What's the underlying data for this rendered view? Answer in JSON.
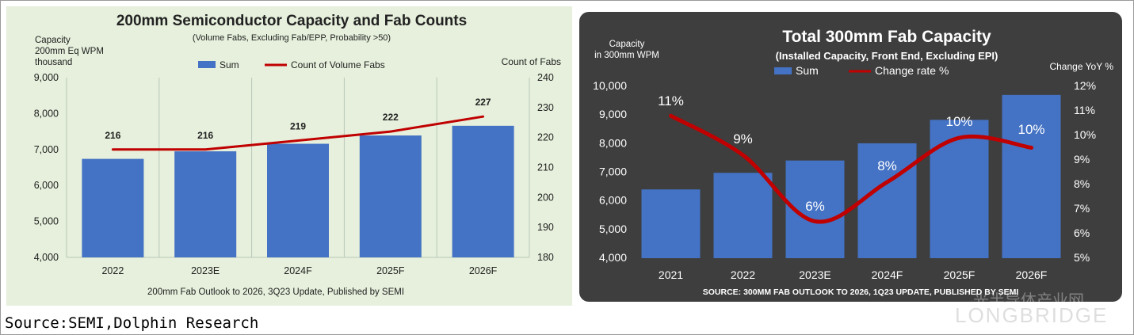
{
  "source_caption": "Source:SEMI,Dolphin Research",
  "watermark": {
    "cn": "光半导体产业网",
    "brand": "LONGBRIDGE"
  },
  "colors": {
    "bar_blue": "#4472c4",
    "line_red": "#c00000",
    "left_bg": "#e6f0dc",
    "right_bg": "#3e3e3e"
  },
  "chart_data": [
    {
      "type": "bar",
      "title": "200mm Semiconductor Capacity and Fab Counts",
      "subtitle": "(Volume Fabs, Excluding Fab/EPP, Probability >50)",
      "ylabel": [
        "Capacity",
        "200mm Eq WPM",
        "thousand"
      ],
      "y2label": "Count of Fabs",
      "categories": [
        "2022",
        "2023E",
        "2024F",
        "2025F",
        "2026F"
      ],
      "series": [
        {
          "name": "Sum",
          "kind": "bar",
          "axis": "left",
          "values": [
            6740,
            6950,
            7160,
            7390,
            7660
          ]
        },
        {
          "name": "Count of Volume Fabs",
          "kind": "line",
          "axis": "right",
          "values": [
            216,
            216,
            219,
            222,
            227
          ]
        }
      ],
      "data_labels": [
        "216",
        "216",
        "219",
        "222",
        "227"
      ],
      "ylim": [
        4000,
        9000
      ],
      "yticks": [
        "4,000",
        "5,000",
        "6,000",
        "7,000",
        "8,000",
        "9,000"
      ],
      "y2lim": [
        180,
        240
      ],
      "y2ticks": [
        "180",
        "190",
        "200",
        "210",
        "220",
        "230",
        "240"
      ],
      "legend": "top-center",
      "grid": "vertical",
      "footnote": "200mm Fab Outlook to 2026, 3Q23 Update, Published by SEMI"
    },
    {
      "type": "bar",
      "title": "Total 300mm Fab Capacity",
      "subtitle": "(Installed Capacity, Front End, Excluding EPI)",
      "ylabel": [
        "Capacity",
        "in 300mm WPM"
      ],
      "y2label": "Change YoY %",
      "categories": [
        "2021",
        "2022",
        "2023E",
        "2024F",
        "2025F",
        "2026F"
      ],
      "series": [
        {
          "name": "Sum",
          "kind": "bar",
          "axis": "left",
          "values": [
            6400,
            6980,
            7410,
            8010,
            8830,
            9700
          ]
        },
        {
          "name": "Change rate %",
          "kind": "line",
          "axis": "right",
          "values": [
            10.8,
            9.2,
            6.5,
            8.1,
            9.9,
            9.5
          ]
        }
      ],
      "data_labels": [
        "11%",
        "9%",
        "6%",
        "8%",
        "10%",
        "10%"
      ],
      "ylim": [
        4000,
        10000
      ],
      "yticks": [
        "4,000",
        "5,000",
        "6,000",
        "7,000",
        "8,000",
        "9,000",
        "10,000"
      ],
      "y2lim": [
        5,
        12
      ],
      "y2ticks": [
        "5%",
        "6%",
        "7%",
        "8%",
        "9%",
        "10%",
        "11%",
        "12%"
      ],
      "legend": "top-center",
      "grid": "none",
      "footnote": "SOURCE: 300MM FAB OUTLOOK TO 2026, 1Q23 UPDATE, PUBLISHED BY SEMI"
    }
  ]
}
